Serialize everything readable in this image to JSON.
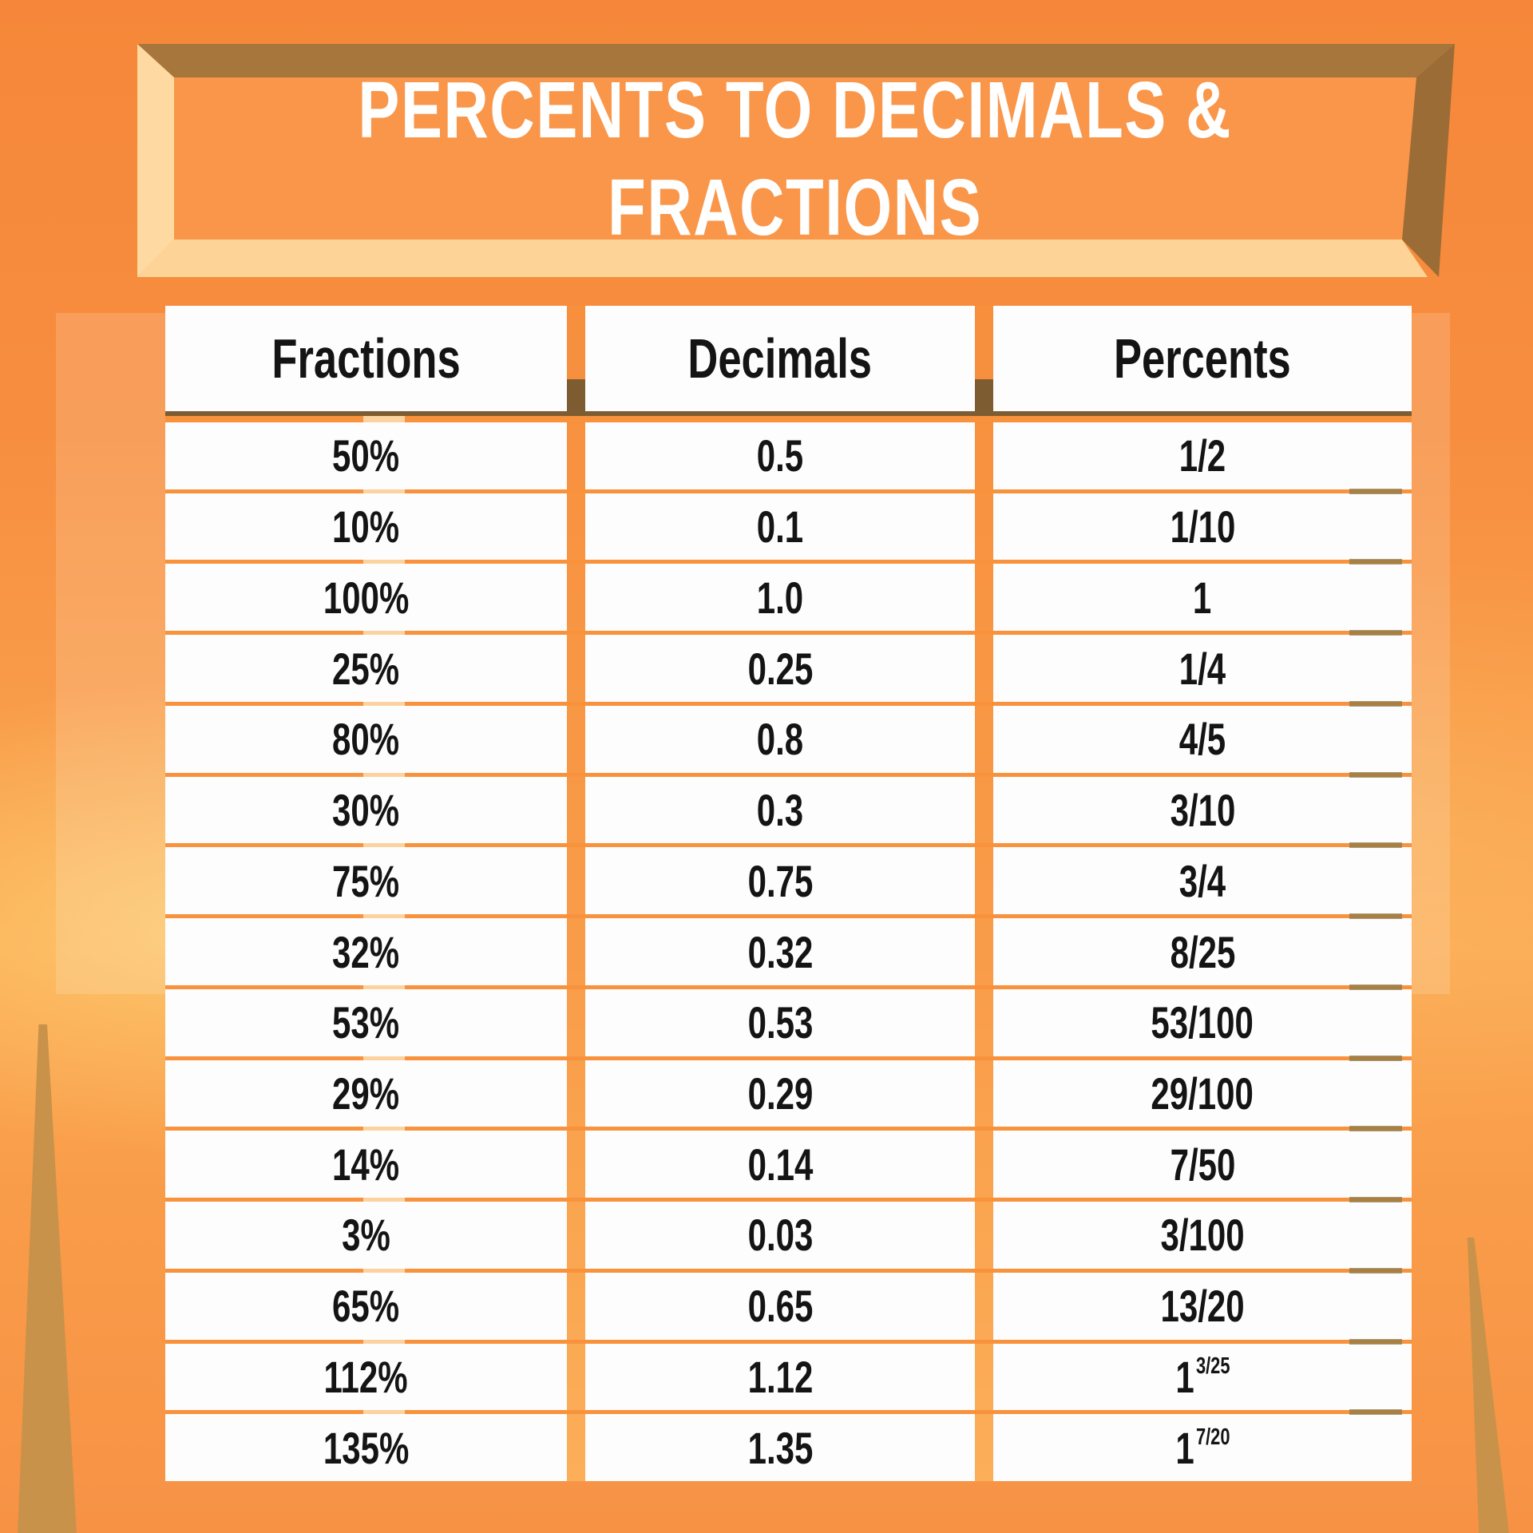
{
  "title": {
    "line1": "PERCENTS TO DECIMALS &",
    "line2": "FRACTIONS"
  },
  "table": {
    "headers": [
      "Fractions",
      "Decimals",
      "Percents"
    ],
    "rows": [
      {
        "fraction": "50%",
        "decimal": "0.5",
        "percent": "1/2"
      },
      {
        "fraction": "10%",
        "decimal": "0.1",
        "percent": "1/10"
      },
      {
        "fraction": "100%",
        "decimal": "1.0",
        "percent": "1"
      },
      {
        "fraction": "25%",
        "decimal": "0.25",
        "percent": "1/4"
      },
      {
        "fraction": "80%",
        "decimal": "0.8",
        "percent": "4/5"
      },
      {
        "fraction": "30%",
        "decimal": "0.3",
        "percent": "3/10"
      },
      {
        "fraction": "75%",
        "decimal": "0.75",
        "percent": "3/4"
      },
      {
        "fraction": "32%",
        "decimal": "0.32",
        "percent": "8/25"
      },
      {
        "fraction": "53%",
        "decimal": "0.53",
        "percent": "53/100"
      },
      {
        "fraction": "29%",
        "decimal": "0.29",
        "percent": "29/100"
      },
      {
        "fraction": "14%",
        "decimal": "0.14",
        "percent": "7/50"
      },
      {
        "fraction": "3%",
        "decimal": "0.03",
        "percent": "3/100"
      },
      {
        "fraction": "65%",
        "decimal": "0.65",
        "percent": "13/20"
      },
      {
        "fraction": "112%",
        "decimal": "1.12",
        "percent": "1",
        "percent_sup": "3/25"
      },
      {
        "fraction": "135%",
        "decimal": "1.35",
        "percent": "1",
        "percent_sup": "7/20"
      }
    ]
  },
  "chart_data": {
    "type": "table",
    "title": "PERCENTS TO DECIMALS & FRACTIONS",
    "columns": [
      "Fractions",
      "Decimals",
      "Percents"
    ],
    "rows": [
      [
        "50%",
        "0.5",
        "1/2"
      ],
      [
        "10%",
        "0.1",
        "1/10"
      ],
      [
        "100%",
        "1.0",
        "1"
      ],
      [
        "25%",
        "0.25",
        "1/4"
      ],
      [
        "80%",
        "0.8",
        "4/5"
      ],
      [
        "30%",
        "0.3",
        "3/10"
      ],
      [
        "75%",
        "0.75",
        "3/4"
      ],
      [
        "32%",
        "0.32",
        "8/25"
      ],
      [
        "53%",
        "0.53",
        "53/100"
      ],
      [
        "29%",
        "0.29",
        "29/100"
      ],
      [
        "14%",
        "0.14",
        "7/50"
      ],
      [
        "3%",
        "0.03",
        "3/100"
      ],
      [
        "65%",
        "0.65",
        "13/20"
      ],
      [
        "112%",
        "1.12",
        "1 3/25"
      ],
      [
        "135%",
        "1.35",
        "1 7/20"
      ]
    ]
  },
  "colors": {
    "bg_orange": "#f6873a",
    "bg_orange_light": "#fbaa55",
    "banner_panel": "#f9964a",
    "banner_bevel_dark": "#a6763d",
    "banner_bevel_dark2": "#9c6c36",
    "banner_bevel_cream": "#ffd9a2",
    "banner_bevel_cream2": "#fed397",
    "cell_white": "#fdfdfd",
    "separator_orange": "#f8923c",
    "header_line_brown": "#7e5c31",
    "spike_tan": "#c9924a",
    "dash_olive": "#8d7947",
    "text_black": "#141414",
    "title_white": "#ffffff"
  }
}
